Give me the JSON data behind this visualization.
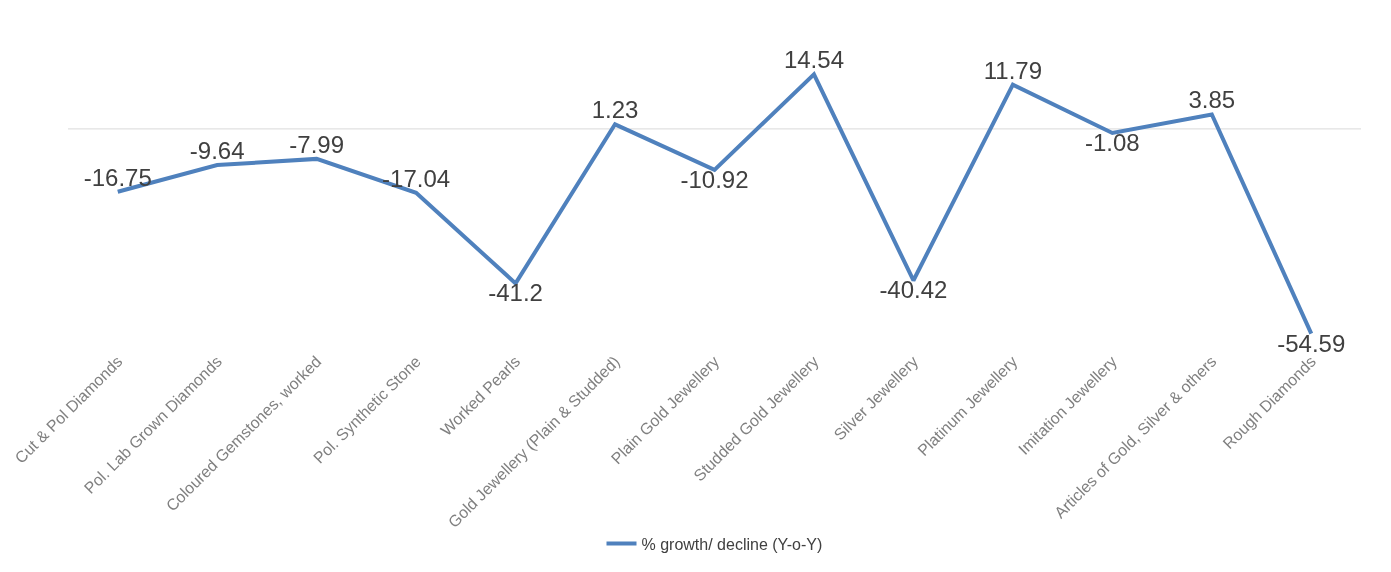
{
  "chart_data": {
    "type": "line",
    "categories": [
      "Cut & Pol Diamonds",
      "Pol. Lab Grown Diamonds",
      "Coloured Gemstones, worked",
      "Pol. Synthetic Stone",
      "Worked Pearls",
      "Gold Jewellery (Plain & Studded)",
      "Plain Gold Jewellery",
      "Studded Gold Jewellery",
      "Silver Jewellery",
      "Platinum Jewellery",
      "Imitation Jewellery",
      "Articles of Gold, Silver & others",
      "Rough Diamonds"
    ],
    "series": [
      {
        "name": "% growth/ decline (Y-o-Y)",
        "color": "#4f81bd",
        "values": [
          -16.75,
          -9.64,
          -7.99,
          -17.04,
          -41.2,
          1.23,
          -10.92,
          14.54,
          -40.42,
          11.79,
          -1.08,
          3.85,
          -54.59
        ]
      }
    ],
    "data_labels": true,
    "ref_lines": [
      {
        "axis": "y",
        "value": 0,
        "color": "#d9d9d9"
      }
    ],
    "tick_labels": "x",
    "legend": "bottom",
    "marker": "none",
    "line_style": "solid"
  }
}
